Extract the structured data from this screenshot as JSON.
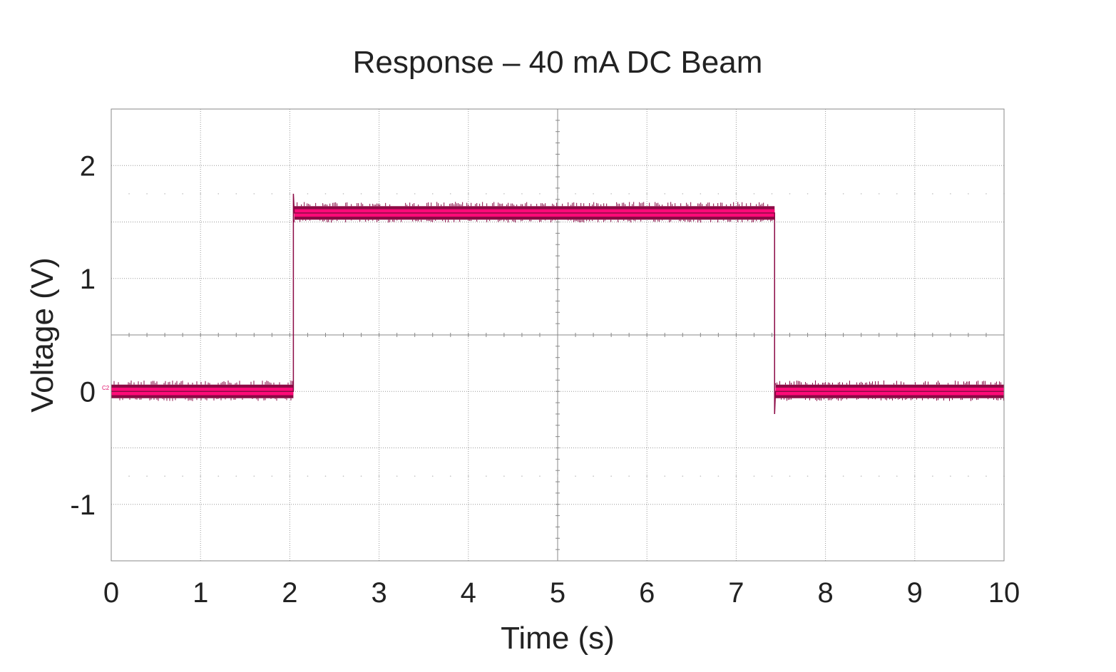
{
  "chart_data": {
    "type": "line",
    "title": "Response – 40 mA DC Beam",
    "xlabel": "Time (s)",
    "ylabel": "Voltage (V)",
    "xlim": [
      0,
      10
    ],
    "ylim": [
      -1.5,
      2.5
    ],
    "xticks": [
      "0",
      "1",
      "2",
      "3",
      "4",
      "5",
      "6",
      "7",
      "8",
      "9",
      "10"
    ],
    "yticks": [
      {
        "v": 2,
        "label": "2"
      },
      {
        "v": 1,
        "label": "1"
      },
      {
        "v": 0,
        "label": "0"
      },
      {
        "v": -1,
        "label": "-1"
      }
    ],
    "grid": true,
    "channel_marker": "C2",
    "series": [
      {
        "color": "#ff0a78",
        "edge_color": "#8b0a45",
        "noise_band_v": 0.06,
        "points": [
          [
            0,
            0
          ],
          [
            2.04,
            0
          ],
          [
            2.04,
            1.75
          ],
          [
            2.05,
            1.58
          ],
          [
            7.43,
            1.58
          ],
          [
            7.43,
            -0.2
          ],
          [
            7.44,
            0
          ],
          [
            10,
            0
          ]
        ]
      }
    ]
  }
}
